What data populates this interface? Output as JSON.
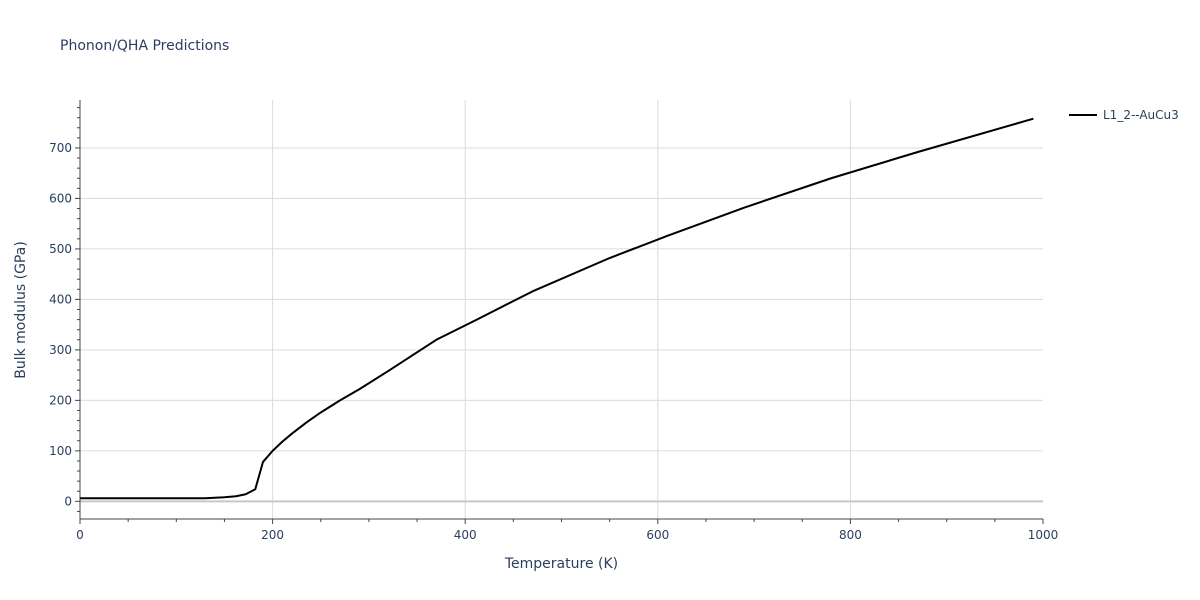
{
  "chart_data": {
    "type": "line",
    "title": "Phonon/QHA Predictions",
    "xlabel": "Temperature (K)",
    "ylabel": "Bulk modulus (GPa)",
    "xlim": [
      0,
      1000
    ],
    "ylim": [
      -35,
      795
    ],
    "x_ticks": [
      0,
      200,
      400,
      600,
      800,
      1000
    ],
    "y_ticks": [
      0,
      100,
      200,
      300,
      400,
      500,
      600,
      700
    ],
    "grid": true,
    "legend_position": "top-right",
    "series": [
      {
        "name": "L1_2--AuCu3",
        "color": "#000000",
        "x": [
          0,
          50,
          100,
          130,
          150,
          162,
          172,
          182,
          190,
          200,
          210,
          220,
          235,
          250,
          270,
          290,
          320,
          370,
          410,
          470,
          550,
          610,
          690,
          780,
          870,
          990
        ],
        "y": [
          6,
          6,
          6,
          6,
          8,
          10,
          14,
          24,
          78,
          100,
          118,
          134,
          156,
          176,
          200,
          222,
          258,
          320,
          358,
          416,
          482,
          526,
          582,
          640,
          692,
          758
        ]
      }
    ]
  }
}
